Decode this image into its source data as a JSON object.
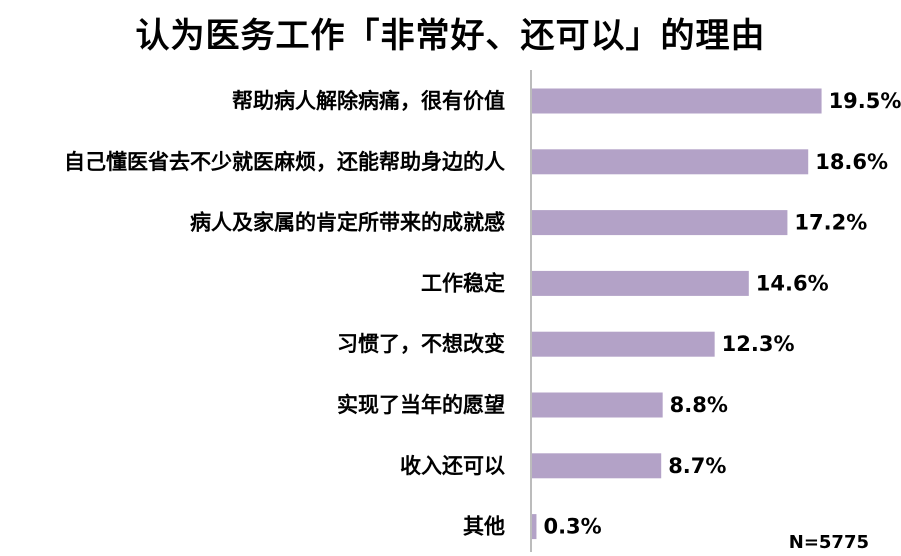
{
  "chart_data": {
    "type": "bar",
    "orientation": "horizontal",
    "title": "认为医务工作「非常好、还可以」的理由",
    "categories": [
      "帮助病人解除病痛，很有价值",
      "自己懂医省去不少就医麻烦，还能帮助身边的人",
      "病人及家属的肯定所带来的成就感",
      "工作稳定",
      "习惯了，不想改变",
      "实现了当年的愿望",
      "收入还可以",
      "其他"
    ],
    "values": [
      19.5,
      18.6,
      17.2,
      14.6,
      12.3,
      8.8,
      8.7,
      0.3
    ],
    "value_labels": [
      "19.5%",
      "18.6%",
      "17.2%",
      "14.6%",
      "12.3%",
      "8.8%",
      "8.7%",
      "0.3%"
    ],
    "xlim": [
      0,
      30
    ],
    "bar_color": "#b3a2c7",
    "axis_color": "#a6a6a6",
    "grid": false,
    "legend": "none",
    "annotation": "N=5775"
  }
}
